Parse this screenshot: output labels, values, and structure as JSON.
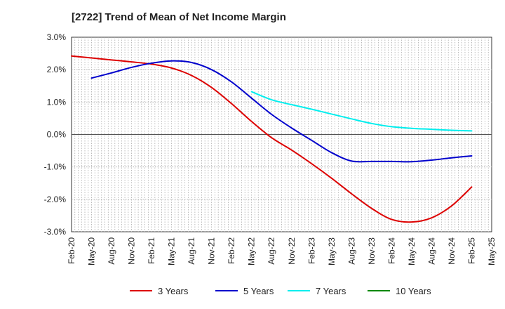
{
  "chart_data": {
    "type": "line",
    "title": "[2722]  Trend of Mean of Net Income Margin",
    "xlabel": "",
    "ylabel": "",
    "x": [
      "Feb-20",
      "May-20",
      "Aug-20",
      "Nov-20",
      "Feb-21",
      "May-21",
      "Aug-21",
      "Nov-21",
      "Feb-22",
      "May-22",
      "Aug-22",
      "Nov-22",
      "Feb-23",
      "May-23",
      "Aug-23",
      "Nov-23",
      "Feb-24",
      "May-24",
      "Aug-24",
      "Nov-24",
      "Feb-25",
      "May-25"
    ],
    "y_ticks": [
      "3.0%",
      "2.0%",
      "1.0%",
      "0.0%",
      "-1.0%",
      "-2.0%",
      "-3.0%"
    ],
    "ylim": [
      -3.0,
      3.0
    ],
    "grid": true,
    "legend_position": "bottom",
    "series": [
      {
        "name": "3 Years",
        "color": "#dd0000",
        "values": [
          2.42,
          2.36,
          2.3,
          2.24,
          2.17,
          2.05,
          1.82,
          1.45,
          0.95,
          0.4,
          -0.1,
          -0.48,
          -0.9,
          -1.35,
          -1.83,
          -2.28,
          -2.62,
          -2.7,
          -2.57,
          -2.2,
          -1.62,
          null
        ]
      },
      {
        "name": "5 Years",
        "color": "#0000cc",
        "values": [
          null,
          1.74,
          1.9,
          2.07,
          2.2,
          2.27,
          2.22,
          2.0,
          1.62,
          1.12,
          0.62,
          0.2,
          -0.18,
          -0.56,
          -0.82,
          -0.83,
          -0.83,
          -0.84,
          -0.79,
          -0.72,
          -0.66,
          null
        ]
      },
      {
        "name": "7 Years",
        "color": "#00eeee",
        "values": [
          null,
          null,
          null,
          null,
          null,
          null,
          null,
          null,
          null,
          1.32,
          1.07,
          0.92,
          0.78,
          0.63,
          0.48,
          0.34,
          0.24,
          0.19,
          0.16,
          0.13,
          0.11,
          null
        ]
      },
      {
        "name": "10 Years",
        "color": "#008800",
        "values": [
          null,
          null,
          null,
          null,
          null,
          null,
          null,
          null,
          null,
          null,
          null,
          null,
          null,
          null,
          null,
          null,
          null,
          null,
          null,
          null,
          null,
          null
        ]
      }
    ]
  }
}
